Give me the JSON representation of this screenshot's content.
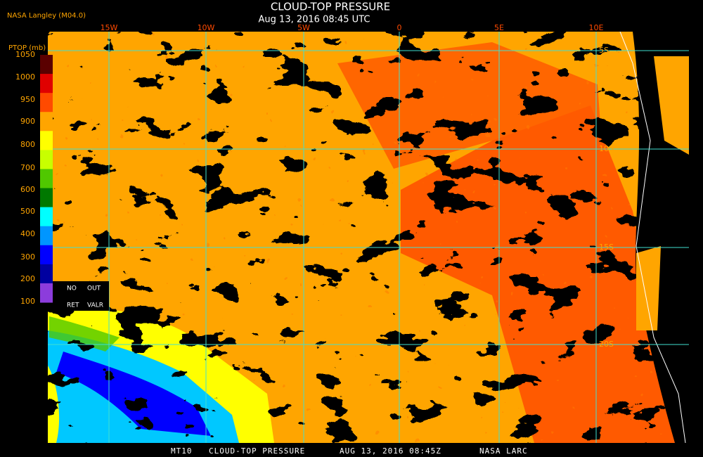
{
  "header": {
    "title": "CLOUD-TOP PRESSURE",
    "subtitle": "Aug 13, 2016 08:45 UTC",
    "source": "NASA Langley (M04.0)"
  },
  "legend": {
    "title": "PTOP (mb)",
    "ticks": [
      "1050",
      "1000",
      "950",
      "900",
      "800",
      "700",
      "600",
      "500",
      "400",
      "300",
      "200",
      "100"
    ],
    "colors": [
      "#5a0000",
      "#e00000",
      "#ff4a00",
      "#ffa500",
      "#ffff00",
      "#c8ff00",
      "#50c800",
      "#007800",
      "#00ffff",
      "#0096ff",
      "#0000ff",
      "#0000a0",
      "#8c3cdc"
    ],
    "notes": [
      "NO",
      "OUT",
      "RET",
      "VALR"
    ]
  },
  "map": {
    "longitude_labels": [
      "15W",
      "10W",
      "5W",
      "0",
      "5E",
      "10E"
    ],
    "latitude_labels": [
      "5S",
      "10S",
      "15S",
      "20S"
    ]
  },
  "footer": [
    "MT10",
    "CLOUD-TOP PRESSURE",
    "AUG 13, 2016 08:45Z",
    "NASA LARC"
  ]
}
